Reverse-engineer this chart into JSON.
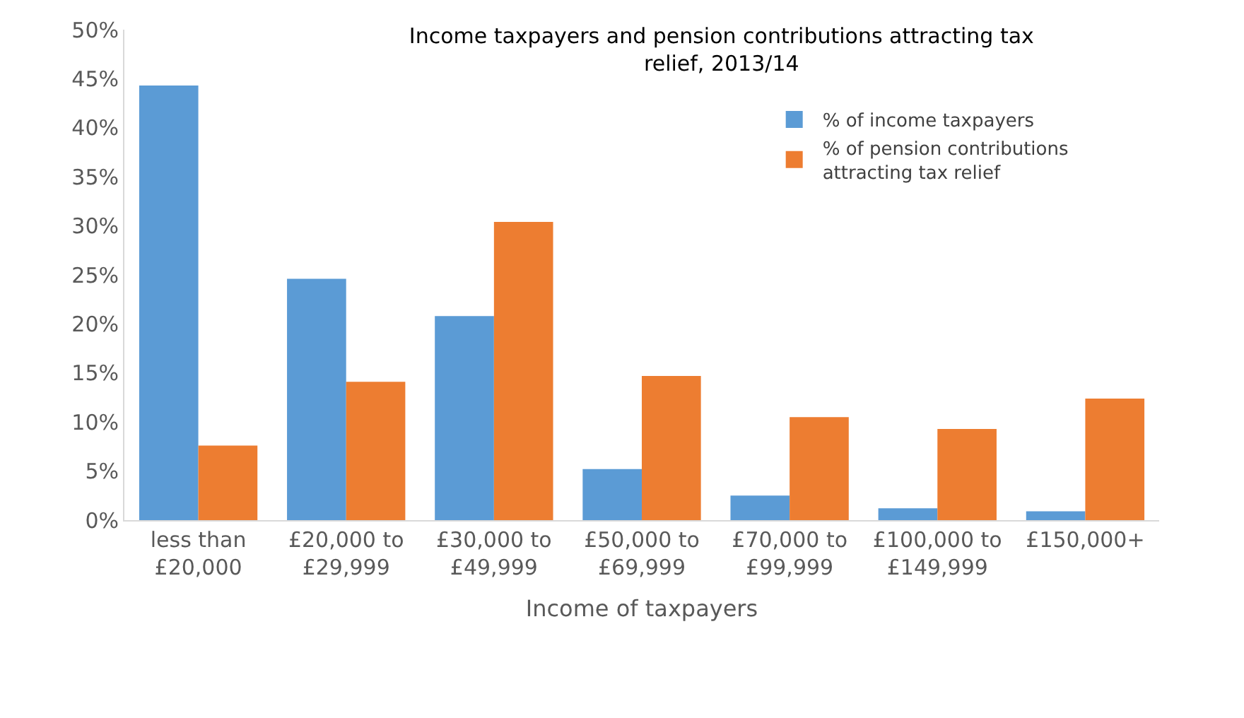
{
  "chart_data": {
    "type": "bar",
    "title": "Income taxpayers and pension contributions attracting tax relief, 2013/14",
    "xlabel": "Income of taxpayers",
    "categories": [
      "less than £20,000",
      "£20,000 to £29,999",
      "£30,000 to £49,999",
      "£50,000 to £69,999",
      "£70,000 to £99,999",
      "£100,000 to £149,999",
      "£150,000+"
    ],
    "series": [
      {
        "name": "% of income taxpayers",
        "color": "#5b9bd5",
        "values": [
          44.3,
          24.6,
          20.8,
          5.2,
          2.5,
          1.2,
          0.9
        ]
      },
      {
        "name": "% of pension contributions attracting tax relief",
        "color": "#ed7d31",
        "values": [
          7.6,
          14.1,
          30.4,
          14.7,
          10.5,
          9.3,
          12.4
        ]
      }
    ],
    "ylim": [
      0,
      50
    ],
    "yticks": [
      {
        "value": 0,
        "label": "0%"
      },
      {
        "value": 5,
        "label": "5%"
      },
      {
        "value": 10,
        "label": "10%"
      },
      {
        "value": 15,
        "label": "15%"
      },
      {
        "value": 20,
        "label": "20%"
      },
      {
        "value": 25,
        "label": "25%"
      },
      {
        "value": 30,
        "label": "30%"
      },
      {
        "value": 35,
        "label": "35%"
      },
      {
        "value": 40,
        "label": "40%"
      },
      {
        "value": 45,
        "label": "45%"
      },
      {
        "value": 50,
        "label": "50%"
      }
    ],
    "grid": false,
    "legend": "top right"
  }
}
